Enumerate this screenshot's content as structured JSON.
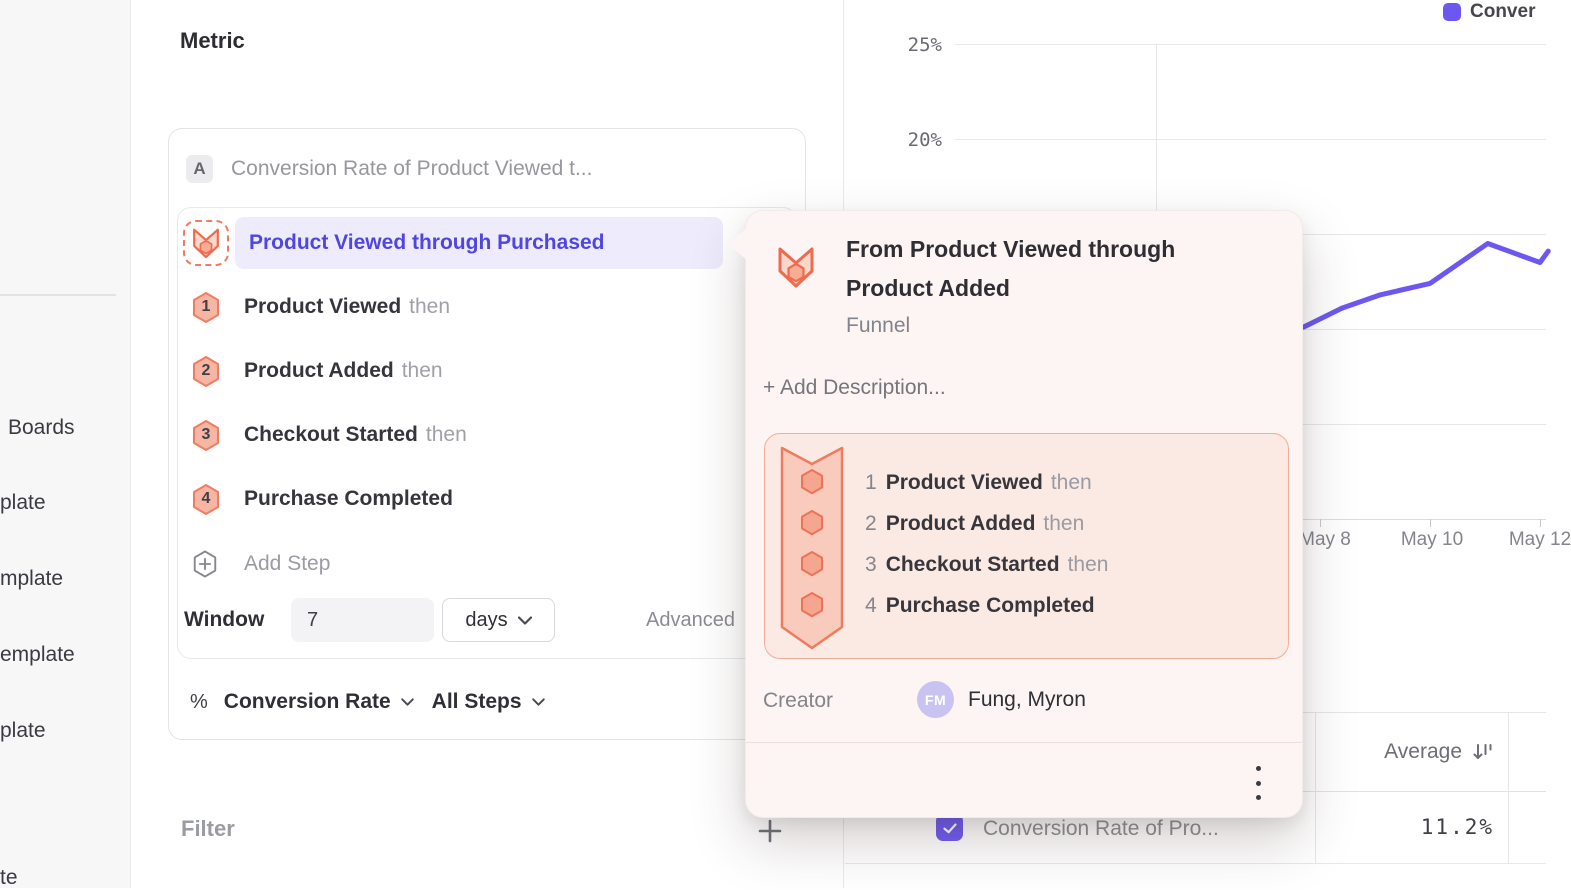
{
  "colors": {
    "accent_purple": "#6C58F1",
    "pill_text_indigo": "#5145E1",
    "funnel_orange": "#EE7257",
    "popover_bg": "#FDF5F3"
  },
  "sidebar": {
    "items": [
      {
        "label": "Boards"
      },
      {
        "label": "plate"
      },
      {
        "label": "mplate"
      },
      {
        "label": "emplate"
      },
      {
        "label": "plate"
      },
      {
        "label": "te"
      }
    ]
  },
  "metric_panel": {
    "heading": "Metric",
    "series_badge": "A",
    "series_title": "Conversion Rate of Product Viewed t...",
    "selected_step": "Product Viewed through Purchased",
    "steps": [
      {
        "num": "1",
        "name": "Product Viewed",
        "connector": "then"
      },
      {
        "num": "2",
        "name": "Product Added",
        "connector": "then"
      },
      {
        "num": "3",
        "name": "Checkout Started",
        "connector": "then"
      },
      {
        "num": "4",
        "name": "Purchase Completed",
        "connector": ""
      }
    ],
    "add_step": "Add Step",
    "window": {
      "label": "Window",
      "value": "7",
      "unit": "days"
    },
    "advanced": "Advanced",
    "measure": {
      "symbol": "%",
      "type": "Conversion Rate",
      "scope": "All Steps"
    },
    "filter": {
      "label": "Filter"
    }
  },
  "popover": {
    "title": "From Product Viewed through Product Added",
    "subtitle": "Funnel",
    "add_description": "+ Add Description...",
    "steps": [
      {
        "num": "1",
        "name": "Product Viewed",
        "connector": "then"
      },
      {
        "num": "2",
        "name": "Product Added",
        "connector": "then"
      },
      {
        "num": "3",
        "name": "Checkout Started",
        "connector": "then"
      },
      {
        "num": "4",
        "name": "Purchase Completed",
        "connector": ""
      }
    ],
    "creator": {
      "label": "Creator",
      "initials": "FM",
      "name": "Fung, Myron"
    }
  },
  "chart_data": {
    "type": "line",
    "title": "",
    "legend_position": "top-right",
    "legend_label_visible": "Conver",
    "grid": true,
    "ylim": [
      0,
      25
    ],
    "y_ticks": [
      "25%",
      "20%"
    ],
    "x_ticks": [
      "May 8",
      "May 10",
      "May 12"
    ],
    "series": [
      {
        "name": "Conversion Rate of Pro...",
        "color": "#6C58F1",
        "points": [
          {
            "day": 7.7,
            "pct": 10.1
          },
          {
            "day": 8.4,
            "pct": 11.1
          },
          {
            "day": 9.1,
            "pct": 11.8
          },
          {
            "day": 10.0,
            "pct": 12.4
          },
          {
            "day": 11.05,
            "pct": 14.5
          },
          {
            "day": 12.0,
            "pct": 13.5
          },
          {
            "day": 12.15,
            "pct": 14.1
          }
        ]
      }
    ],
    "note": "left portion of line hidden behind popover"
  },
  "table": {
    "average_header": "Average",
    "rows": [
      {
        "checked": true,
        "name": "Conversion Rate of Pro...",
        "average": "11.2%"
      }
    ]
  }
}
